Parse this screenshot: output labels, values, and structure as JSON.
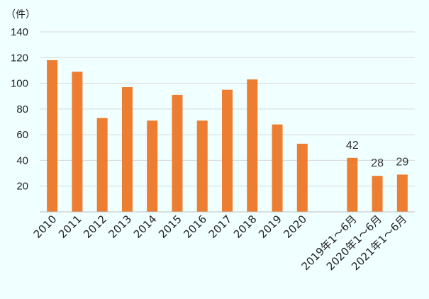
{
  "chart_data": {
    "type": "bar",
    "unit_label": "（件）",
    "categories": [
      "2010",
      "2011",
      "2012",
      "2013",
      "2014",
      "2015",
      "2016",
      "2017",
      "2018",
      "2019",
      "2020",
      "",
      "2019年1～6月",
      "2020年1～6月",
      "2021年1～6月"
    ],
    "values": [
      118,
      109,
      73,
      97,
      71,
      91,
      71,
      95,
      103,
      68,
      53,
      null,
      42,
      28,
      29
    ],
    "data_labels": [
      "",
      "",
      "",
      "",
      "",
      "",
      "",
      "",
      "",
      "",
      "",
      "",
      "42",
      "28",
      "29"
    ],
    "yticks": [
      20,
      40,
      60,
      80,
      100,
      120,
      140
    ],
    "ylim": [
      0,
      140
    ],
    "grid": true,
    "bar_color": "#ED7D31",
    "grid_color": "#D9D9D9",
    "axis_color": "#BFBFBF",
    "background": "#F0FFFF"
  }
}
